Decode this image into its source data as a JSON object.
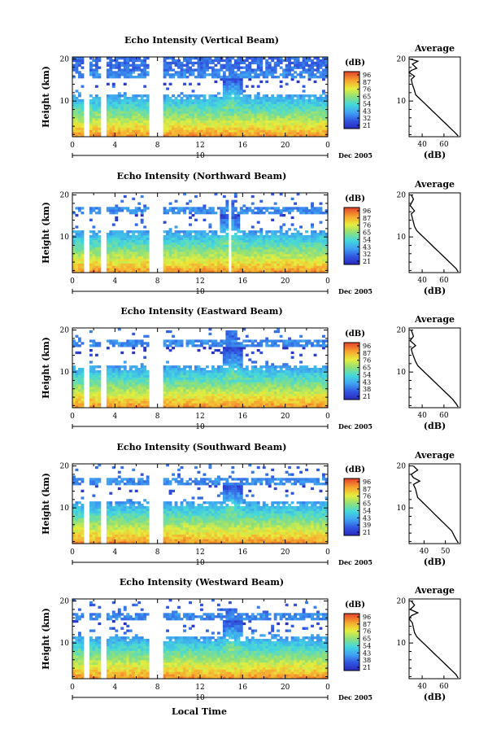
{
  "figure": {
    "date_label": "Dec 2005",
    "day_label": "10",
    "xlabel": "Local Time",
    "colorbar_unit": "(dB)",
    "avg_title": "Average",
    "avg_xlabel": "(dB)",
    "height_label": "Height (km)"
  },
  "chart_data": [
    {
      "type": "heatmap",
      "title": "Echo Intensity (Vertical Beam)",
      "xlabel": "",
      "ylabel": "Height (km)",
      "x_ticks": [
        "0",
        "4",
        "8",
        "12",
        "16",
        "20",
        "0"
      ],
      "xlim_hours": [
        0,
        24
      ],
      "y_ticks": [
        "20",
        "10"
      ],
      "ylim_km": [
        1.5,
        20.5
      ],
      "colorbar": {
        "label": "(dB)",
        "ticks": [
          "96",
          "87",
          "76",
          "65",
          "54",
          "43",
          "32",
          "21"
        ]
      },
      "gaps_hours": [
        [
          1.2,
          1.5
        ],
        [
          2.6,
          3.1
        ],
        [
          7.3,
          8.6
        ]
      ],
      "plume": {
        "center_hour": 15,
        "top_km": 16
      },
      "tropopause_km": 16.5,
      "average_profile": {
        "title": "Average",
        "xlabel": "(dB)",
        "x_ticks": [
          "40",
          "60"
        ],
        "xlim": [
          28,
          75
        ],
        "y_ticks": [
          "20",
          "10"
        ],
        "points": [
          [
            29,
            20
          ],
          [
            36,
            19.5
          ],
          [
            31,
            18.8
          ],
          [
            35,
            17.8
          ],
          [
            30,
            17.3
          ],
          [
            28,
            16.8
          ],
          [
            33,
            15.9
          ],
          [
            30,
            15.2
          ],
          [
            31,
            14
          ],
          [
            33,
            12.5
          ],
          [
            34,
            11.5
          ],
          [
            38,
            10.5
          ],
          [
            42,
            9.5
          ],
          [
            46,
            8.5
          ],
          [
            50,
            7.5
          ],
          [
            54,
            6.5
          ],
          [
            58,
            5.5
          ],
          [
            62,
            4.5
          ],
          [
            66,
            3.5
          ],
          [
            70,
            2.5
          ],
          [
            73,
            1.7
          ]
        ]
      }
    },
    {
      "type": "heatmap",
      "title": "Echo Intensity (Northward Beam)",
      "xlabel": "",
      "ylabel": "Height (km)",
      "x_ticks": [
        "0",
        "4",
        "8",
        "12",
        "16",
        "20",
        "0"
      ],
      "xlim_hours": [
        0,
        24
      ],
      "y_ticks": [
        "20",
        "10"
      ],
      "ylim_km": [
        1.5,
        20.5
      ],
      "colorbar": {
        "label": "(dB)",
        "ticks": [
          "96",
          "87",
          "76",
          "65",
          "54",
          "43",
          "32",
          "21"
        ]
      },
      "gaps_hours": [
        [
          1.2,
          1.5
        ],
        [
          2.6,
          3.1
        ],
        [
          7.3,
          8.6
        ],
        [
          14.6,
          14.9
        ]
      ],
      "plume": {
        "center_hour": 14.8,
        "top_km": 19
      },
      "tropopause_km": 16.5,
      "average_profile": {
        "title": "Average",
        "xlabel": "(dB)",
        "x_ticks": [
          "40",
          "60"
        ],
        "xlim": [
          28,
          75
        ],
        "y_ticks": [
          "20",
          "10"
        ],
        "points": [
          [
            30,
            20
          ],
          [
            32,
            19
          ],
          [
            30,
            18
          ],
          [
            29,
            17.5
          ],
          [
            33,
            16.2
          ],
          [
            30,
            15.5
          ],
          [
            31,
            14.5
          ],
          [
            33,
            12.5
          ],
          [
            35,
            11.5
          ],
          [
            39,
            10.5
          ],
          [
            43,
            9.5
          ],
          [
            47,
            8.5
          ],
          [
            51,
            7.5
          ],
          [
            55,
            6.5
          ],
          [
            59,
            5.5
          ],
          [
            63,
            4.5
          ],
          [
            67,
            3.5
          ],
          [
            71,
            2.5
          ],
          [
            73,
            1.7
          ]
        ]
      }
    },
    {
      "type": "heatmap",
      "title": "Echo Intensity (Eastward Beam)",
      "xlabel": "",
      "ylabel": "Height (km)",
      "x_ticks": [
        "0",
        "4",
        "8",
        "12",
        "16",
        "20",
        "0"
      ],
      "xlim_hours": [
        0,
        24
      ],
      "y_ticks": [
        "20",
        "10"
      ],
      "ylim_km": [
        1.5,
        20.5
      ],
      "colorbar": {
        "label": "(dB)",
        "ticks": [
          "96",
          "87",
          "76",
          "65",
          "54",
          "43",
          "38",
          "21"
        ]
      },
      "gaps_hours": [
        [
          1.2,
          1.5
        ],
        [
          2.6,
          3.1
        ],
        [
          7.3,
          8.6
        ]
      ],
      "plume": {
        "center_hour": 15,
        "top_km": 20
      },
      "tropopause_km": 17,
      "average_profile": {
        "title": "Average",
        "xlabel": "(dB)",
        "x_ticks": [
          "40",
          "60"
        ],
        "xlim": [
          28,
          75
        ],
        "y_ticks": [
          "20",
          "10"
        ],
        "points": [
          [
            30,
            20
          ],
          [
            32,
            18.5
          ],
          [
            29,
            17.5
          ],
          [
            34,
            16.3
          ],
          [
            30,
            15.5
          ],
          [
            31,
            14.5
          ],
          [
            34,
            12.5
          ],
          [
            36,
            11.5
          ],
          [
            40,
            10.5
          ],
          [
            44,
            9.5
          ],
          [
            48,
            8.5
          ],
          [
            52,
            7.5
          ],
          [
            56,
            6.5
          ],
          [
            60,
            5.5
          ],
          [
            64,
            4.5
          ],
          [
            68,
            3.5
          ],
          [
            71,
            2.5
          ],
          [
            73,
            1.7
          ]
        ]
      }
    },
    {
      "type": "heatmap",
      "title": "Echo Intensity (Southward Beam)",
      "xlabel": "",
      "ylabel": "Height (km)",
      "x_ticks": [
        "0",
        "4",
        "8",
        "12",
        "16",
        "20",
        "0"
      ],
      "xlim_hours": [
        0,
        24
      ],
      "y_ticks": [
        "20",
        "10"
      ],
      "ylim_km": [
        1.5,
        20.5
      ],
      "colorbar": {
        "label": "(dB)",
        "ticks": [
          "96",
          "87",
          "76",
          "65",
          "54",
          "43",
          "39",
          "21"
        ]
      },
      "gaps_hours": [
        [
          1.2,
          1.5
        ],
        [
          2.6,
          3.1
        ],
        [
          7.3,
          8.6
        ]
      ],
      "plume": {
        "center_hour": 15,
        "top_km": 16
      },
      "tropopause_km": 16.5,
      "average_profile": {
        "title": "Average",
        "xlabel": "(dB)",
        "x_ticks": [
          "40",
          "50"
        ],
        "xlim": [
          33,
          57
        ],
        "y_ticks": [
          "20",
          "10"
        ],
        "points": [
          [
            35,
            20
          ],
          [
            37,
            19
          ],
          [
            34,
            18
          ],
          [
            35,
            17.2
          ],
          [
            38,
            16.4
          ],
          [
            35,
            15.6
          ],
          [
            36,
            14.5
          ],
          [
            37,
            12.5
          ],
          [
            39,
            11.5
          ],
          [
            41,
            10.5
          ],
          [
            43,
            9.5
          ],
          [
            45,
            8.5
          ],
          [
            47,
            7.5
          ],
          [
            49,
            6.5
          ],
          [
            51,
            5.5
          ],
          [
            53,
            4.5
          ],
          [
            54,
            3.5
          ],
          [
            55,
            2.5
          ],
          [
            56,
            1.7
          ]
        ]
      }
    },
    {
      "type": "heatmap",
      "title": "Echo Intensity (Westward Beam)",
      "xlabel": "Local Time",
      "ylabel": "Height (km)",
      "x_ticks": [
        "0",
        "4",
        "8",
        "12",
        "16",
        "20",
        "0"
      ],
      "xlim_hours": [
        0,
        24
      ],
      "y_ticks": [
        "20",
        "10"
      ],
      "ylim_km": [
        1.5,
        20.5
      ],
      "colorbar": {
        "label": "(dB)",
        "ticks": [
          "96",
          "87",
          "76",
          "65",
          "54",
          "43",
          "38",
          "21"
        ]
      },
      "gaps_hours": [
        [
          1.2,
          1.5
        ],
        [
          2.6,
          3.1
        ],
        [
          7.3,
          8.6
        ]
      ],
      "plume": {
        "center_hour": 15,
        "top_km": 18
      },
      "tropopause_km": 16.5,
      "average_profile": {
        "title": "Average",
        "xlabel": "(dB)",
        "x_ticks": [
          "40",
          "60"
        ],
        "xlim": [
          28,
          75
        ],
        "y_ticks": [
          "20",
          "10"
        ],
        "points": [
          [
            30,
            20
          ],
          [
            33,
            19
          ],
          [
            29,
            18
          ],
          [
            36,
            17.2
          ],
          [
            30,
            16.5
          ],
          [
            28,
            15.8
          ],
          [
            31,
            14.8
          ],
          [
            33,
            12.5
          ],
          [
            35,
            11.5
          ],
          [
            39,
            10.5
          ],
          [
            43,
            9.5
          ],
          [
            47,
            8.5
          ],
          [
            51,
            7.5
          ],
          [
            55,
            6.5
          ],
          [
            59,
            5.5
          ],
          [
            63,
            4.5
          ],
          [
            67,
            3.5
          ],
          [
            71,
            2.5
          ],
          [
            73,
            1.7
          ]
        ]
      }
    }
  ]
}
